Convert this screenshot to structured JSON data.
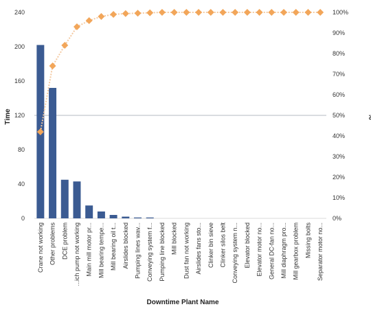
{
  "chart_data": {
    "type": "bar",
    "xlabel": "Downtime Plant Name",
    "ylabel": "Time",
    "y2label": "%",
    "ylim": [
      0,
      240
    ],
    "y2lim": [
      0,
      100
    ],
    "yticks": [
      "0",
      "40",
      "80",
      "120",
      "160",
      "200",
      "240"
    ],
    "y2ticks": [
      "0%",
      "10%",
      "20%",
      "30%",
      "40%",
      "50%",
      "60%",
      "70%",
      "80%",
      "90%",
      "100%"
    ],
    "grid": false,
    "reference_line": {
      "axis": "y2",
      "value": 50
    },
    "categories": [
      "Crane not working",
      "Other problems",
      "DCE problem",
      "...ich pump not working",
      "Main mill motor pr...",
      "Mill bearing tempe...",
      "Mill bearing oil t...",
      "Airslides blocked",
      "Pumping lines wav...",
      "Conveying system f...",
      "Pumping line blocked",
      "Mill blocked",
      "Dust fan not working",
      "Airslides fans sto...",
      "Clinker bin sieve",
      "Clinker silos belt",
      "Conveying system n...",
      "Elevator blocked",
      "Elevator motor no...",
      "General DC-fan no...",
      "Mill diaphragm pro...",
      "Mill gearbox problem",
      "Missing bolts",
      "Separator motor no..."
    ],
    "series": [
      {
        "kind": "bar",
        "axis": "y",
        "color": "#3b5b92",
        "values": [
          202,
          152,
          45,
          43,
          15,
          8,
          4,
          2,
          1,
          1,
          0,
          0,
          0,
          0,
          0,
          0,
          0,
          0,
          0,
          0,
          0,
          0,
          0,
          0
        ]
      },
      {
        "kind": "line",
        "axis": "y2",
        "color": "#f2a65a",
        "line_color": "#f4c9a0",
        "marker": "diamond",
        "values": [
          42,
          74,
          84,
          93,
          96,
          98,
          99,
          99.4,
          99.6,
          99.8,
          100,
          100,
          100,
          100,
          100,
          100,
          100,
          100,
          100,
          100,
          100,
          100,
          100,
          100
        ]
      }
    ]
  }
}
